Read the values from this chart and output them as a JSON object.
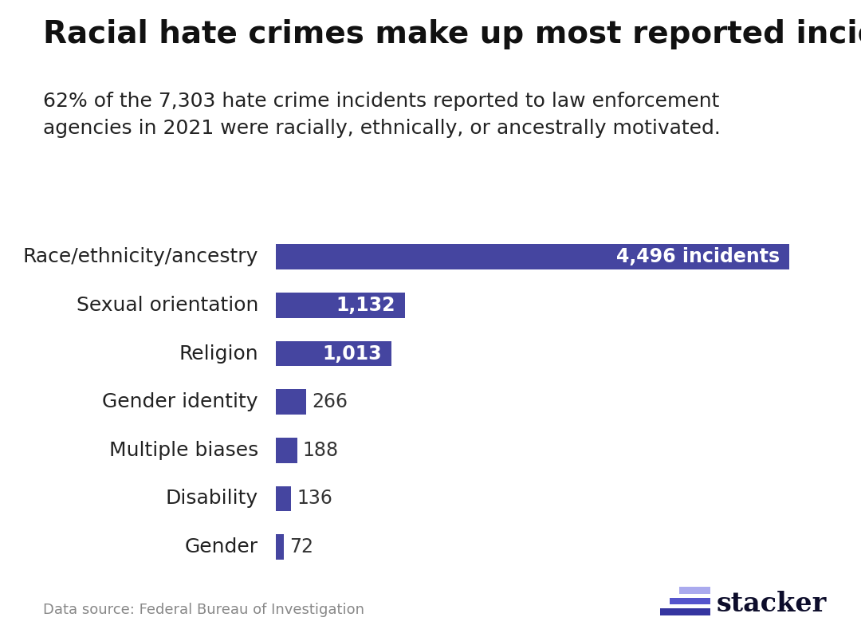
{
  "title": "Racial hate crimes make up most reported incidents",
  "subtitle": "62% of the 7,303 hate crime incidents reported to law enforcement\nagencies in 2021 were racially, ethnically, or ancestrally motivated.",
  "categories": [
    "Race/ethnicity/ancestry",
    "Sexual orientation",
    "Religion",
    "Gender identity",
    "Multiple biases",
    "Disability",
    "Gender"
  ],
  "values": [
    4496,
    1132,
    1013,
    266,
    188,
    136,
    72
  ],
  "labels": [
    "4,496 incidents",
    "1,132",
    "1,013",
    "266",
    "188",
    "136",
    "72"
  ],
  "bar_color": "#4545a0",
  "label_color_inside": "#ffffff",
  "label_color_outside": "#333333",
  "background_color": "#ffffff",
  "title_fontsize": 28,
  "subtitle_fontsize": 18,
  "category_fontsize": 18,
  "label_fontsize": 17,
  "source_text": "Data source: Federal Bureau of Investigation",
  "source_fontsize": 13,
  "xlim": [
    0,
    4900
  ],
  "bar_height": 0.52
}
